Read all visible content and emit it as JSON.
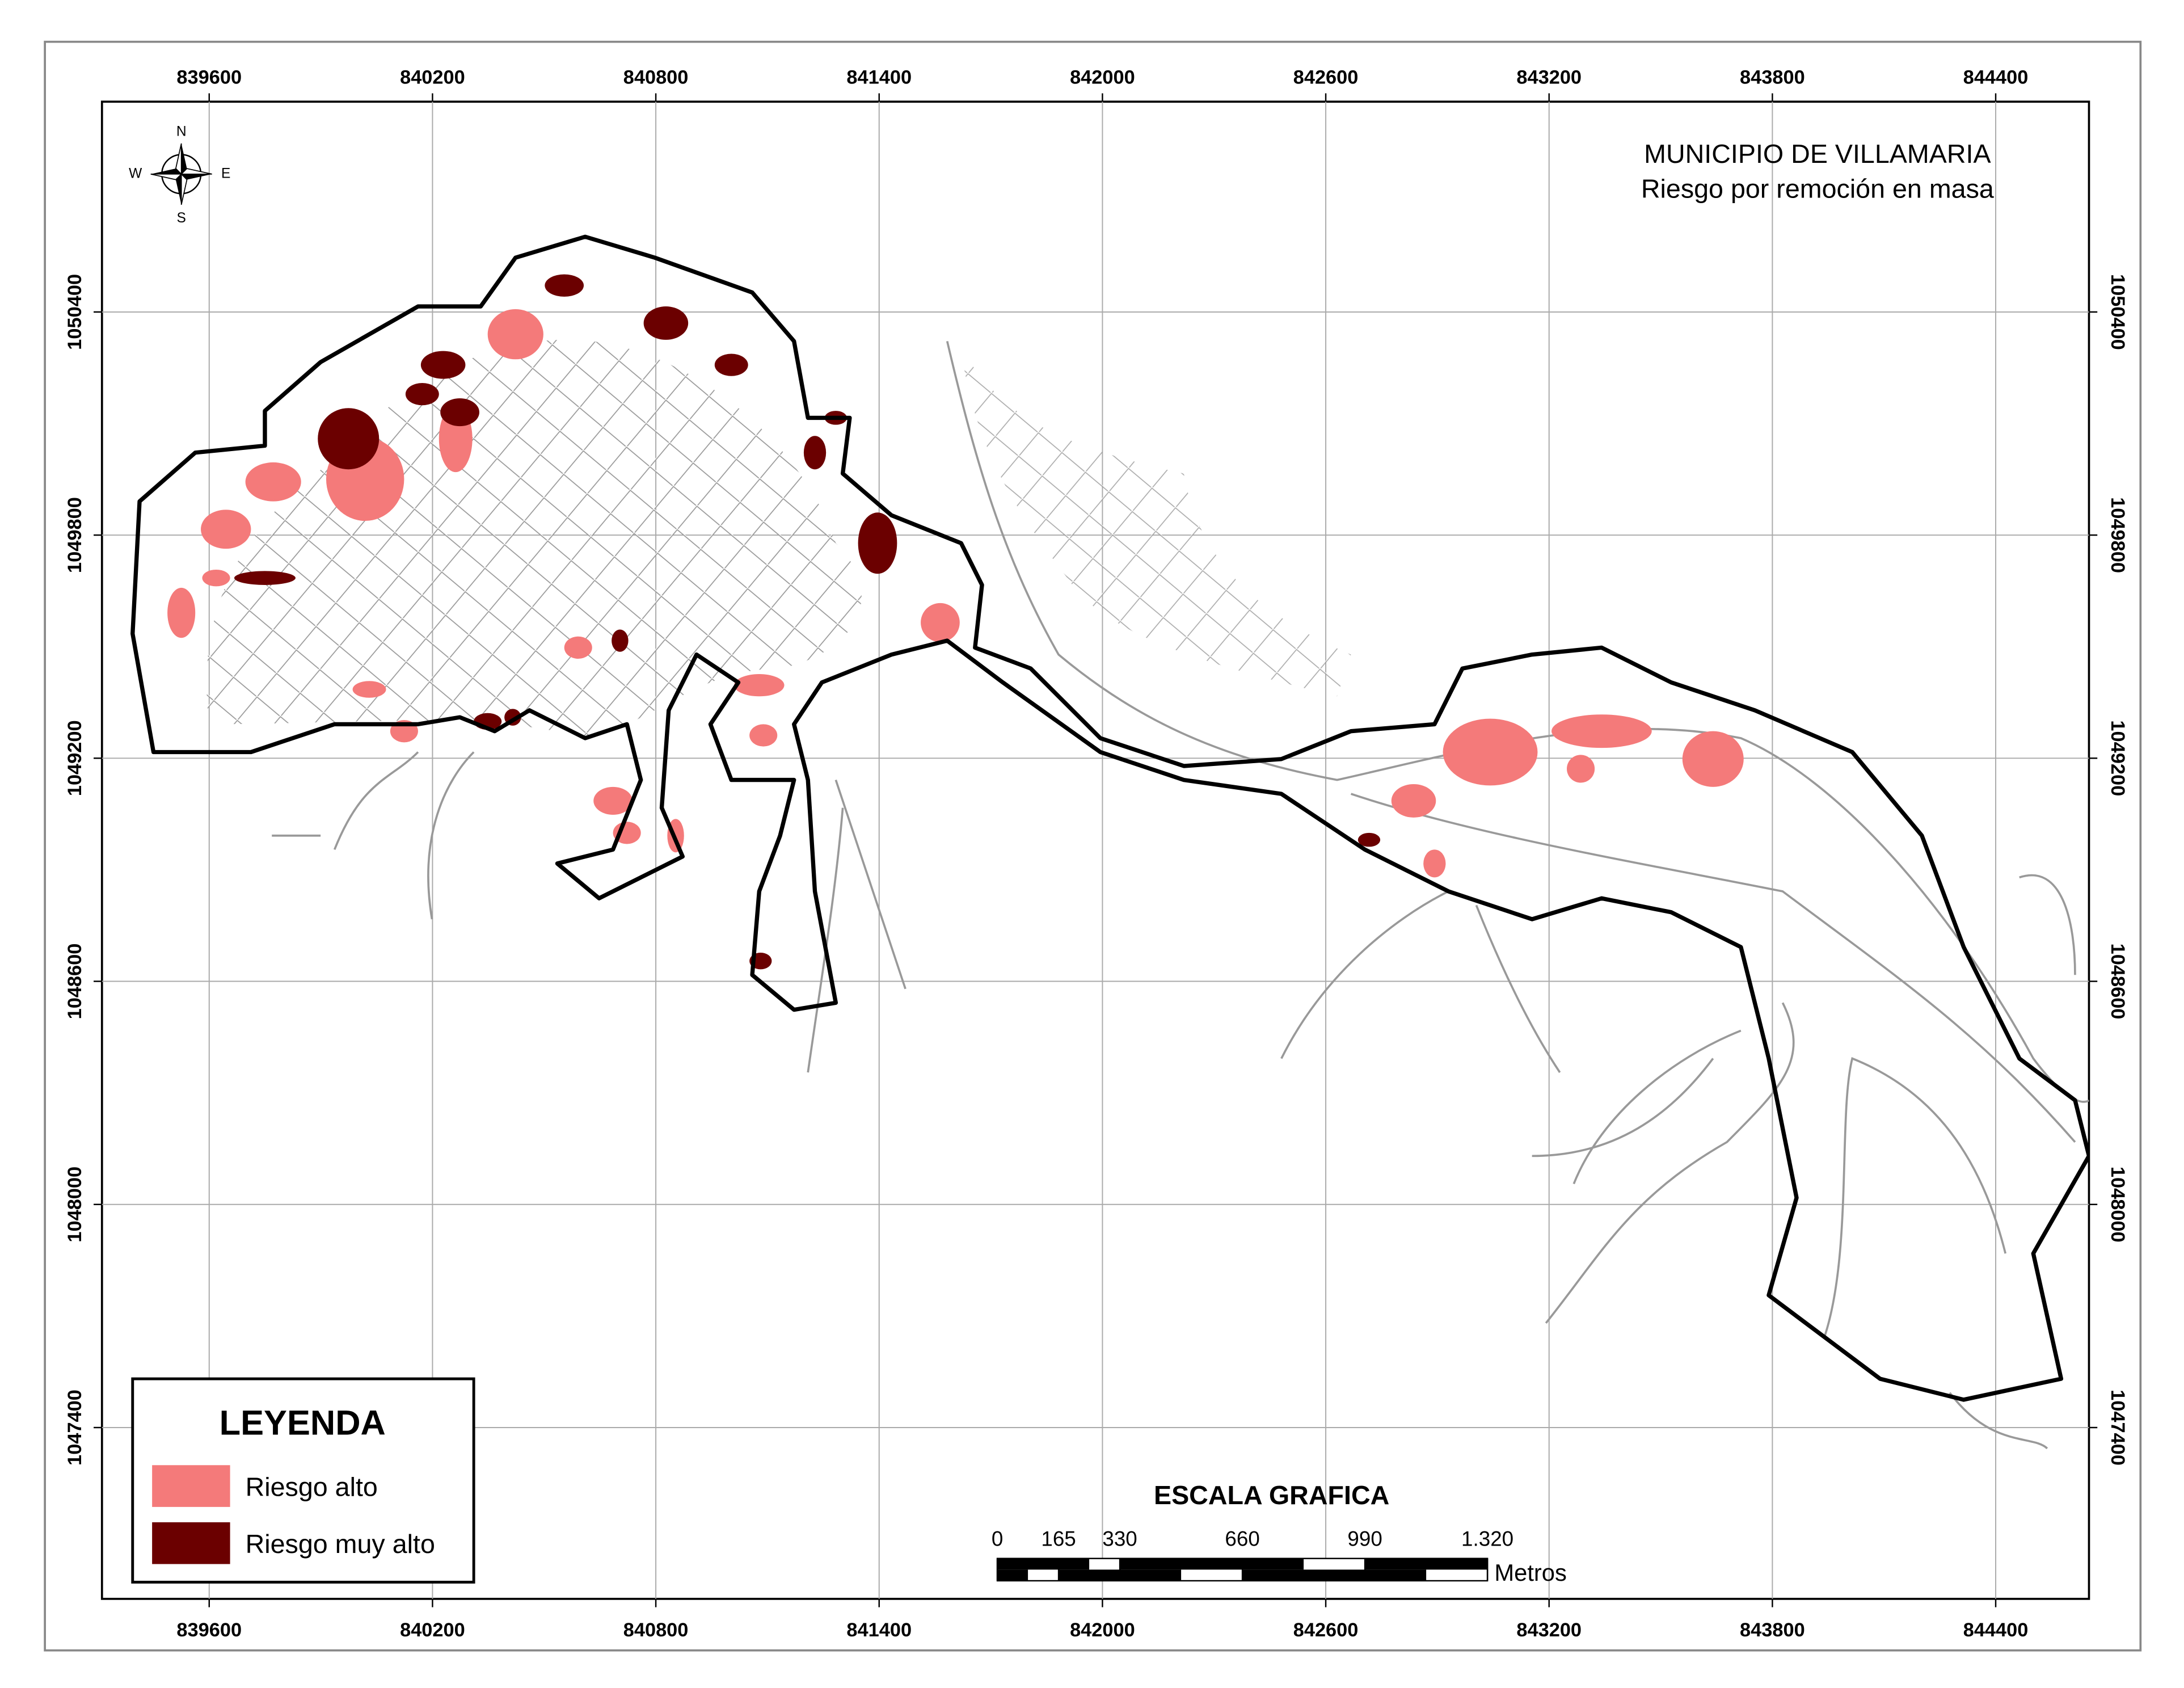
{
  "title": [
    "MUNICIPIO DE VILLAMARIA",
    "Riesgo por remoción en masa"
  ],
  "compass": {
    "n": "N",
    "s": "S",
    "e": "E",
    "w": "W"
  },
  "x_ticks": [
    839600,
    840200,
    840800,
    841400,
    842000,
    842600,
    843200,
    843800,
    844400
  ],
  "y_ticks": [
    1047400,
    1048000,
    1048600,
    1049200,
    1049800,
    1050400
  ],
  "legend": {
    "title": "LEYENDA",
    "items": [
      {
        "label": "Riesgo alto",
        "color": "#f47a7a"
      },
      {
        "label": "Riesgo muy alto",
        "color": "#6b0000"
      }
    ]
  },
  "scale": {
    "title": "ESCALA GRAFICA",
    "ticks": [
      0,
      165,
      330,
      660,
      990,
      {
        "value": 1320,
        "label": "1.320"
      }
    ],
    "unit": "Metros"
  }
}
